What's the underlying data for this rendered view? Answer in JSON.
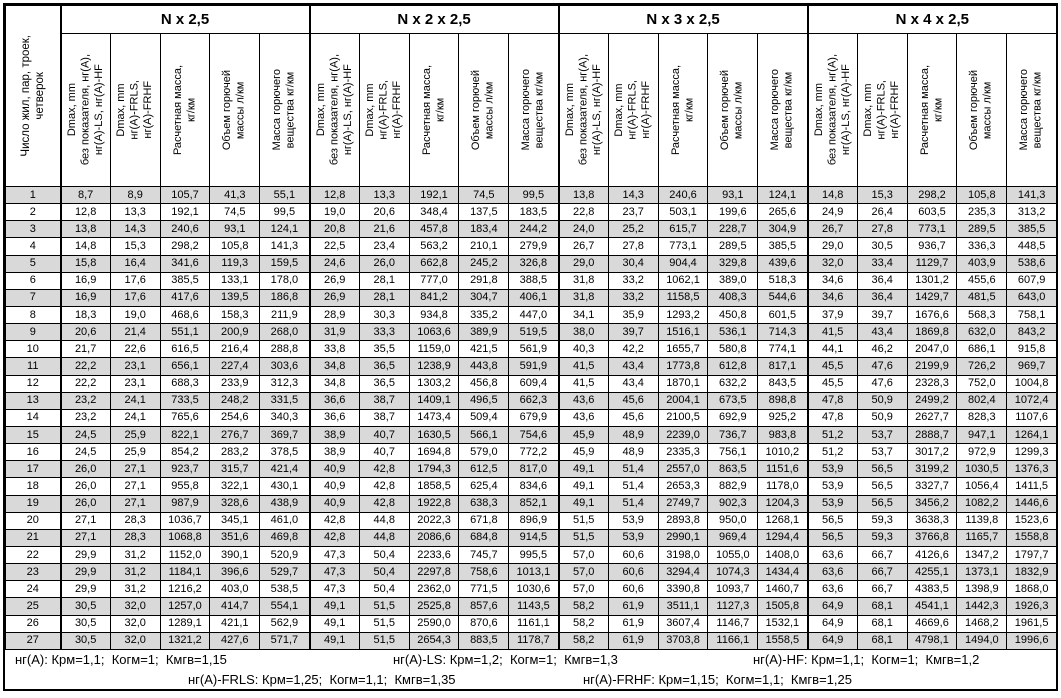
{
  "colors": {
    "row_stripe": "#d9d9d9",
    "border": "#000000",
    "background": "#ffffff"
  },
  "table": {
    "corner_header": "Число жил, пар, троек,\nчетверок",
    "groups": [
      {
        "title": "N x 2,5"
      },
      {
        "title": "N x 2 x 2,5"
      },
      {
        "title": "N x 3 x 2,5"
      },
      {
        "title": "N x 4 x 2,5"
      }
    ],
    "subheaders": [
      "Dmax, mm\nбез показателя, нг(A),\nнг(A)-LS, нг(A)-HF",
      "Dmax, mm\nнг(A)-FRLS,\nнг(A)-FRHF",
      "Расчетная масса,\nкг/км",
      "Объем горючей\nмассы л/км",
      "Масса горючего\nвещества кг/км"
    ],
    "rows": [
      [
        "1",
        "8,7",
        "8,9",
        "105,7",
        "41,3",
        "55,1",
        "12,8",
        "13,3",
        "192,1",
        "74,5",
        "99,5",
        "13,8",
        "14,3",
        "240,6",
        "93,1",
        "124,1",
        "14,8",
        "15,3",
        "298,2",
        "105,8",
        "141,3"
      ],
      [
        "2",
        "12,8",
        "13,3",
        "192,1",
        "74,5",
        "99,5",
        "19,0",
        "20,6",
        "348,4",
        "137,5",
        "183,5",
        "22,8",
        "23,7",
        "503,1",
        "199,6",
        "265,6",
        "24,9",
        "26,4",
        "603,5",
        "235,3",
        "313,2"
      ],
      [
        "3",
        "13,8",
        "14,3",
        "240,6",
        "93,1",
        "124,1",
        "20,8",
        "21,6",
        "457,8",
        "183,4",
        "244,2",
        "24,0",
        "25,2",
        "615,7",
        "228,7",
        "304,9",
        "26,7",
        "27,8",
        "773,1",
        "289,5",
        "385,5"
      ],
      [
        "4",
        "14,8",
        "15,3",
        "298,2",
        "105,8",
        "141,3",
        "22,5",
        "23,4",
        "563,2",
        "210,1",
        "279,9",
        "26,7",
        "27,8",
        "773,1",
        "289,5",
        "385,5",
        "29,0",
        "30,5",
        "936,7",
        "336,3",
        "448,5"
      ],
      [
        "5",
        "15,8",
        "16,4",
        "341,6",
        "119,3",
        "159,5",
        "24,6",
        "26,0",
        "662,8",
        "245,2",
        "326,8",
        "29,0",
        "30,4",
        "904,4",
        "329,8",
        "439,6",
        "32,0",
        "33,4",
        "1129,7",
        "403,9",
        "538,6"
      ],
      [
        "6",
        "16,9",
        "17,6",
        "385,5",
        "133,1",
        "178,0",
        "26,9",
        "28,1",
        "777,0",
        "291,8",
        "388,5",
        "31,8",
        "33,2",
        "1062,1",
        "389,0",
        "518,3",
        "34,6",
        "36,4",
        "1301,2",
        "455,6",
        "607,9"
      ],
      [
        "7",
        "16,9",
        "17,6",
        "417,6",
        "139,5",
        "186,8",
        "26,9",
        "28,1",
        "841,2",
        "304,7",
        "406,1",
        "31,8",
        "33,2",
        "1158,5",
        "408,3",
        "544,6",
        "34,6",
        "36,4",
        "1429,7",
        "481,5",
        "643,0"
      ],
      [
        "8",
        "18,3",
        "19,0",
        "468,6",
        "158,3",
        "211,9",
        "28,9",
        "30,3",
        "934,8",
        "335,2",
        "447,0",
        "34,1",
        "35,9",
        "1293,2",
        "450,8",
        "601,5",
        "37,9",
        "39,7",
        "1676,6",
        "568,3",
        "758,1"
      ],
      [
        "9",
        "20,6",
        "21,4",
        "551,1",
        "200,9",
        "268,0",
        "31,9",
        "33,3",
        "1063,6",
        "389,9",
        "519,5",
        "38,0",
        "39,7",
        "1516,1",
        "536,1",
        "714,3",
        "41,5",
        "43,4",
        "1869,8",
        "632,0",
        "843,2"
      ],
      [
        "10",
        "21,7",
        "22,6",
        "616,5",
        "216,4",
        "288,8",
        "33,8",
        "35,5",
        "1159,0",
        "421,5",
        "561,9",
        "40,3",
        "42,2",
        "1655,7",
        "580,8",
        "774,1",
        "44,1",
        "46,2",
        "2047,0",
        "686,1",
        "915,8"
      ],
      [
        "11",
        "22,2",
        "23,1",
        "656,1",
        "227,4",
        "303,6",
        "34,8",
        "36,5",
        "1238,9",
        "443,8",
        "591,9",
        "41,5",
        "43,4",
        "1773,8",
        "612,8",
        "817,1",
        "45,5",
        "47,6",
        "2199,9",
        "726,2",
        "969,7"
      ],
      [
        "12",
        "22,2",
        "23,1",
        "688,3",
        "233,9",
        "312,3",
        "34,8",
        "36,5",
        "1303,2",
        "456,8",
        "609,4",
        "41,5",
        "43,4",
        "1870,1",
        "632,2",
        "843,5",
        "45,5",
        "47,6",
        "2328,3",
        "752,0",
        "1004,8"
      ],
      [
        "13",
        "23,2",
        "24,1",
        "733,5",
        "248,2",
        "331,5",
        "36,6",
        "38,7",
        "1409,1",
        "496,5",
        "662,3",
        "43,6",
        "45,6",
        "2004,1",
        "673,5",
        "898,8",
        "47,8",
        "50,9",
        "2499,2",
        "802,4",
        "1072,4"
      ],
      [
        "14",
        "23,2",
        "24,1",
        "765,6",
        "254,6",
        "340,3",
        "36,6",
        "38,7",
        "1473,4",
        "509,4",
        "679,9",
        "43,6",
        "45,6",
        "2100,5",
        "692,9",
        "925,2",
        "47,8",
        "50,9",
        "2627,7",
        "828,3",
        "1107,6"
      ],
      [
        "15",
        "24,5",
        "25,9",
        "822,1",
        "276,7",
        "369,7",
        "38,9",
        "40,7",
        "1630,5",
        "566,1",
        "754,6",
        "45,9",
        "48,9",
        "2239,0",
        "736,7",
        "983,8",
        "51,2",
        "53,7",
        "2888,7",
        "947,1",
        "1264,1"
      ],
      [
        "16",
        "24,5",
        "25,9",
        "854,2",
        "283,2",
        "378,5",
        "38,9",
        "40,7",
        "1694,8",
        "579,0",
        "772,2",
        "45,9",
        "48,9",
        "2335,3",
        "756,1",
        "1010,2",
        "51,2",
        "53,7",
        "3017,2",
        "972,9",
        "1299,3"
      ],
      [
        "17",
        "26,0",
        "27,1",
        "923,7",
        "315,7",
        "421,4",
        "40,9",
        "42,8",
        "1794,3",
        "612,5",
        "817,0",
        "49,1",
        "51,4",
        "2557,0",
        "863,5",
        "1151,6",
        "53,9",
        "56,5",
        "3199,2",
        "1030,5",
        "1376,3"
      ],
      [
        "18",
        "26,0",
        "27,1",
        "955,8",
        "322,1",
        "430,1",
        "40,9",
        "42,8",
        "1858,5",
        "625,4",
        "834,6",
        "49,1",
        "51,4",
        "2653,3",
        "882,9",
        "1178,0",
        "53,9",
        "56,5",
        "3327,7",
        "1056,4",
        "1411,5"
      ],
      [
        "19",
        "26,0",
        "27,1",
        "987,9",
        "328,6",
        "438,9",
        "40,9",
        "42,8",
        "1922,8",
        "638,3",
        "852,1",
        "49,1",
        "51,4",
        "2749,7",
        "902,3",
        "1204,3",
        "53,9",
        "56,5",
        "3456,2",
        "1082,2",
        "1446,6"
      ],
      [
        "20",
        "27,1",
        "28,3",
        "1036,7",
        "345,1",
        "461,0",
        "42,8",
        "44,8",
        "2022,3",
        "671,8",
        "896,9",
        "51,5",
        "53,9",
        "2893,8",
        "950,0",
        "1268,1",
        "56,5",
        "59,3",
        "3638,3",
        "1139,8",
        "1523,6"
      ],
      [
        "21",
        "27,1",
        "28,3",
        "1068,8",
        "351,6",
        "469,8",
        "42,8",
        "44,8",
        "2086,6",
        "684,8",
        "914,5",
        "51,5",
        "53,9",
        "2990,1",
        "969,4",
        "1294,4",
        "56,5",
        "59,3",
        "3766,8",
        "1165,7",
        "1558,8"
      ],
      [
        "22",
        "29,9",
        "31,2",
        "1152,0",
        "390,1",
        "520,9",
        "47,3",
        "50,4",
        "2233,6",
        "745,7",
        "995,5",
        "57,0",
        "60,6",
        "3198,0",
        "1055,0",
        "1408,0",
        "63,6",
        "66,7",
        "4126,6",
        "1347,2",
        "1797,7"
      ],
      [
        "23",
        "29,9",
        "31,2",
        "1184,1",
        "396,6",
        "529,7",
        "47,3",
        "50,4",
        "2297,8",
        "758,6",
        "1013,1",
        "57,0",
        "60,6",
        "3294,4",
        "1074,3",
        "1434,4",
        "63,6",
        "66,7",
        "4255,1",
        "1373,1",
        "1832,9"
      ],
      [
        "24",
        "29,9",
        "31,2",
        "1216,2",
        "403,0",
        "538,5",
        "47,3",
        "50,4",
        "2362,0",
        "771,5",
        "1030,6",
        "57,0",
        "60,6",
        "3390,8",
        "1093,7",
        "1460,7",
        "63,6",
        "66,7",
        "4383,5",
        "1398,9",
        "1868,0"
      ],
      [
        "25",
        "30,5",
        "32,0",
        "1257,0",
        "414,7",
        "554,1",
        "49,1",
        "51,5",
        "2525,8",
        "857,6",
        "1143,5",
        "58,2",
        "61,9",
        "3511,1",
        "1127,3",
        "1505,8",
        "64,9",
        "68,1",
        "4541,1",
        "1442,3",
        "1926,3"
      ],
      [
        "26",
        "30,5",
        "32,0",
        "1289,1",
        "421,1",
        "562,9",
        "49,1",
        "51,5",
        "2590,0",
        "870,6",
        "1161,1",
        "58,2",
        "61,9",
        "3607,4",
        "1146,7",
        "1532,1",
        "64,9",
        "68,1",
        "4669,6",
        "1468,2",
        "1961,5"
      ],
      [
        "27",
        "30,5",
        "32,0",
        "1321,2",
        "427,6",
        "571,7",
        "49,1",
        "51,5",
        "2654,3",
        "883,5",
        "1178,7",
        "58,2",
        "61,9",
        "3703,8",
        "1166,1",
        "1558,5",
        "64,9",
        "68,1",
        "4798,1",
        "1494,0",
        "1996,6"
      ]
    ]
  },
  "footer": {
    "line1": [
      "нг(A): Крм=1,1;  Когм=1;  Кмгв=1,15",
      "нг(A)-LS: Крм=1,2;  Когм=1;  Кмгв=1,3",
      "нг(A)-HF: Крм=1,1;  Когм=1;  Кмгв=1,2"
    ],
    "line2": [
      "нг(A)-FRLS: Крм=1,25;  Когм=1,1;  Кмгв=1,35",
      "нг(A)-FRHF: Крм=1,15;  Когм=1,1;  Кмгв=1,25"
    ]
  }
}
